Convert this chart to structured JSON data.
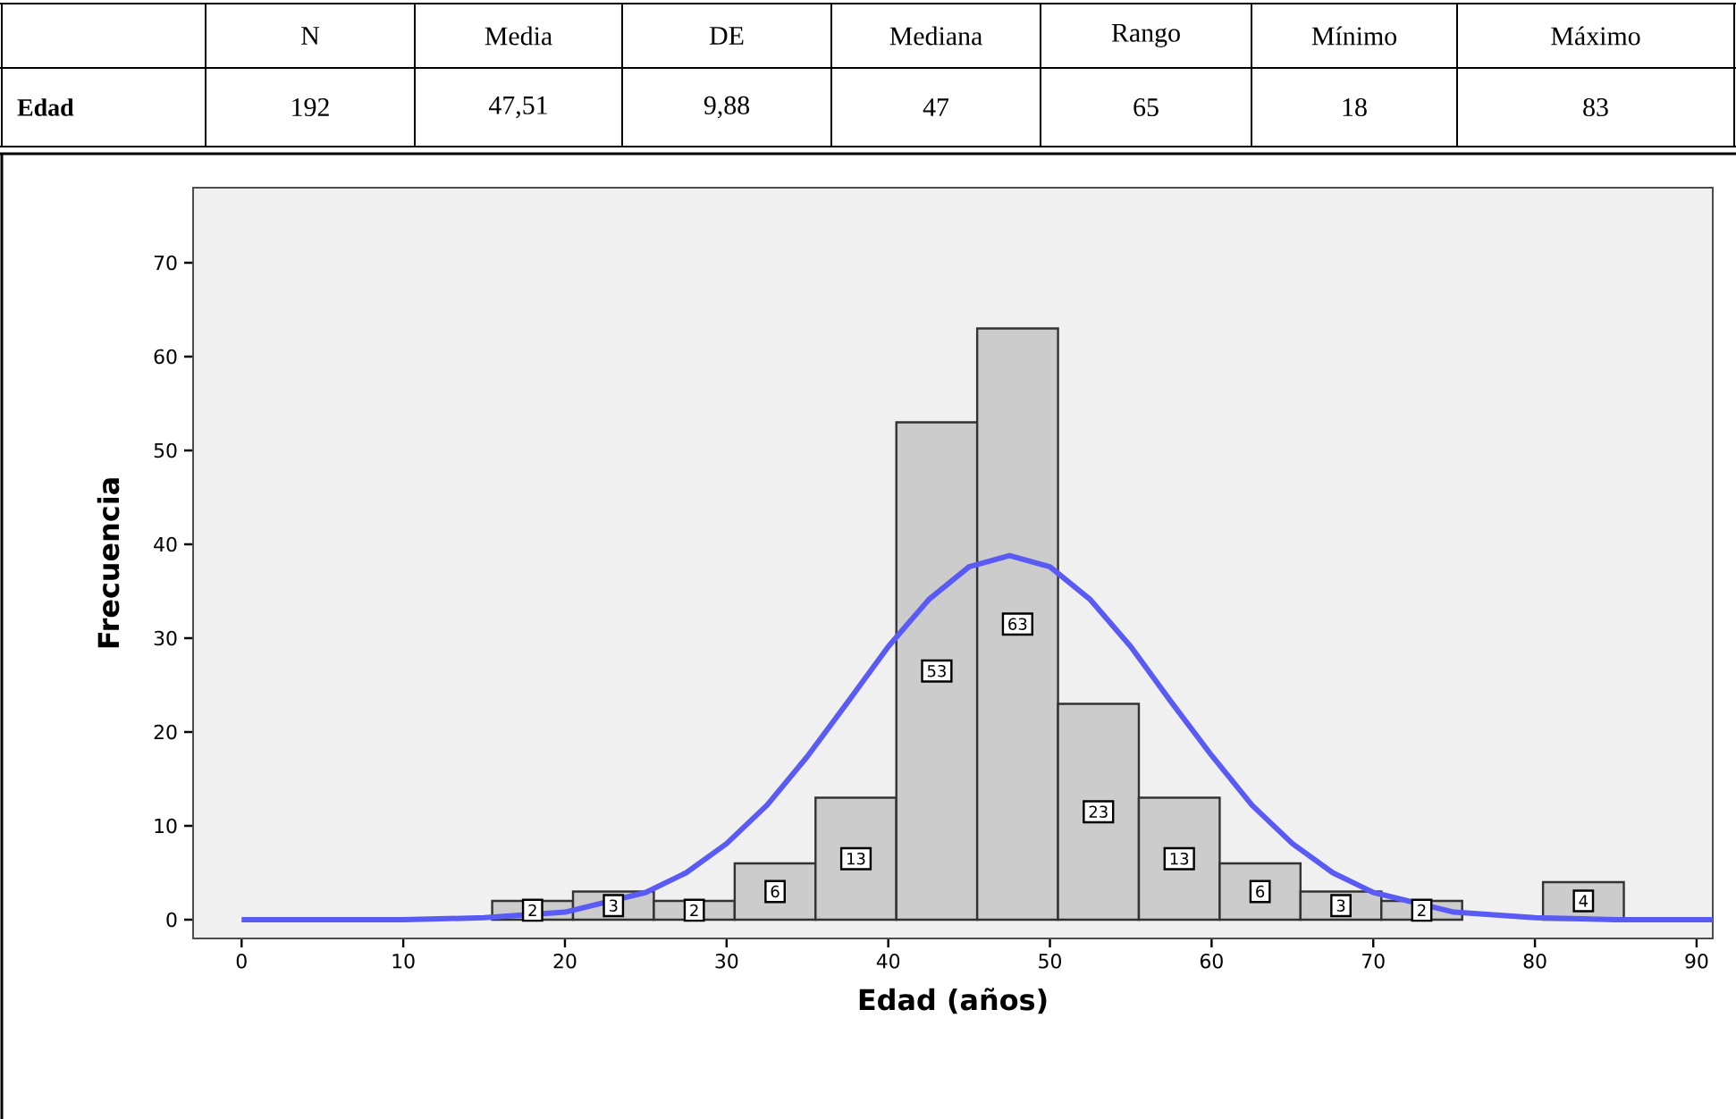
{
  "chart_data": {
    "type": "histogram",
    "xlabel": "Edad (años)",
    "ylabel": "Frecuencia",
    "bins": [
      15.5,
      20.5,
      25.5,
      30.5,
      35.5,
      40.5,
      45.5,
      50.5,
      55.5,
      60.5,
      65.5,
      70.5,
      75.5,
      80.5,
      85.5
    ],
    "values": [
      2,
      3,
      2,
      6,
      13,
      53,
      63,
      23,
      13,
      6,
      3,
      2,
      0,
      4
    ],
    "value_labels": [
      "2",
      "3",
      "2",
      "6",
      "13",
      "53",
      "63",
      "23",
      "13",
      "6",
      "3",
      "2",
      null,
      "4"
    ],
    "color": "#cccccc",
    "series": [
      {
        "type": "line",
        "color": "#5a5af5",
        "x": [
          0,
          10,
          15,
          20,
          25,
          27.5,
          30,
          32.5,
          35,
          37.5,
          40,
          42.5,
          45,
          47.5,
          50,
          52.5,
          55,
          57.5,
          60,
          62.5,
          65,
          67.5,
          70,
          75,
          80,
          85,
          91
        ],
        "values": [
          0,
          0,
          0.2,
          0.8,
          2.9,
          5,
          8.1,
          12.2,
          17.4,
          23.2,
          29.1,
          34.1,
          37.6,
          38.8,
          37.6,
          34.1,
          29.1,
          23.2,
          17.5,
          12.2,
          8.1,
          5,
          2.9,
          0.8,
          0.2,
          0,
          0
        ]
      }
    ],
    "xlim": [
      -3,
      91
    ],
    "ylim": [
      -2,
      78
    ],
    "xticks": [
      0,
      10,
      20,
      30,
      40,
      50,
      60,
      70,
      80,
      90
    ],
    "yticks": [
      0,
      10,
      20,
      30,
      40,
      50,
      60,
      70
    ],
    "annotations": [
      "N",
      "Media",
      "DE",
      "Mediana",
      "Rango",
      "Mínimo",
      "Máximo",
      "Edad",
      "192",
      "47,51",
      "9,88",
      "47",
      "65",
      "18",
      "83"
    ]
  }
}
